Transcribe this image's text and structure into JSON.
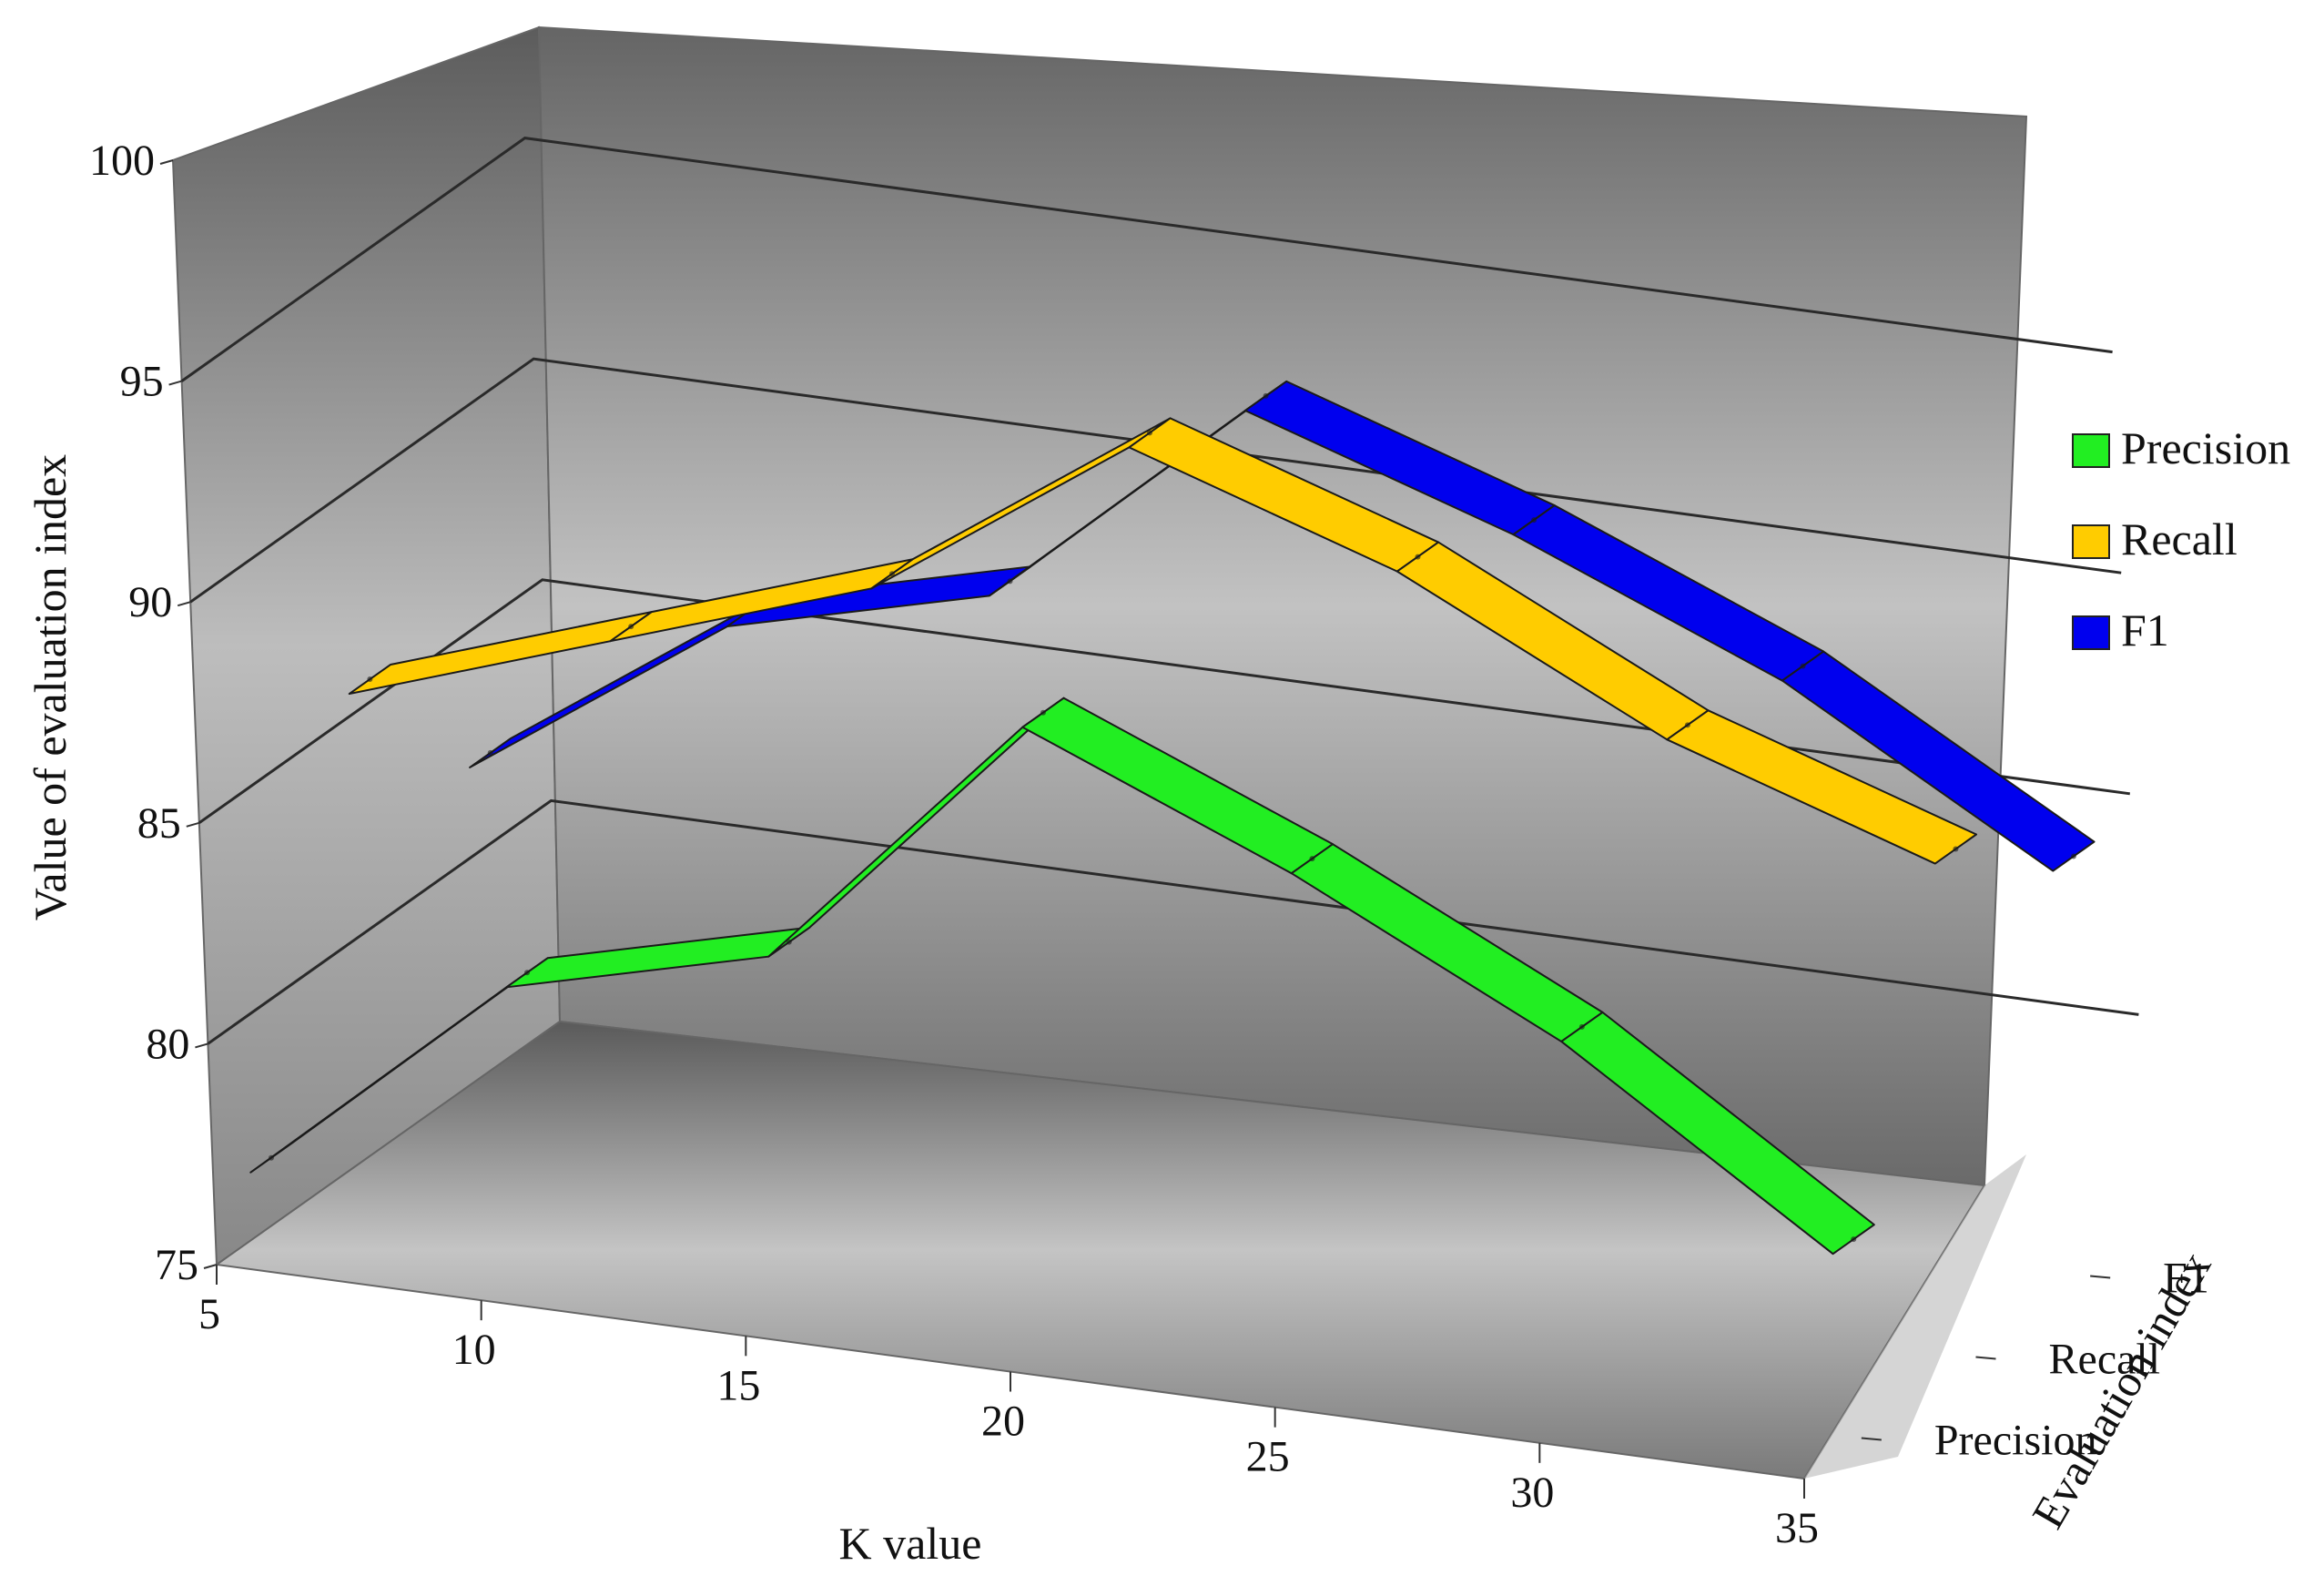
{
  "chart_data": {
    "type": "line",
    "view": "3d-ribbon",
    "x": [
      5,
      10,
      15,
      20,
      25,
      30,
      35
    ],
    "x_ticks": [
      "5",
      "10",
      "15",
      "20",
      "25",
      "30",
      "35"
    ],
    "y_ticks": [
      "75",
      "80",
      "85",
      "90",
      "95",
      "100"
    ],
    "ylim": [
      75,
      100
    ],
    "z_ticks": [
      "Precision",
      "Recall",
      "F1"
    ],
    "xlabel": "K value",
    "ylabel": "Value of evaluation index",
    "zlabel": "Evaluation index",
    "series": [
      {
        "name": "Precision",
        "color": "#22ee22",
        "values": [
          76.5,
          81.5,
          83.0,
          89.0,
          86.5,
          83.5,
          79.5
        ]
      },
      {
        "name": "Recall",
        "color": "#ffcc00",
        "values": [
          85.5,
          87.5,
          89.5,
          93.5,
          91.5,
          88.5,
          86.5
        ]
      },
      {
        "name": "F1",
        "color": "#0000ee",
        "values": [
          82.0,
          86.0,
          87.5,
          92.5,
          90.5,
          88.0,
          84.5
        ]
      }
    ],
    "legend": {
      "position": "right",
      "items": [
        "Precision",
        "Recall",
        "F1"
      ]
    },
    "grid": true
  }
}
